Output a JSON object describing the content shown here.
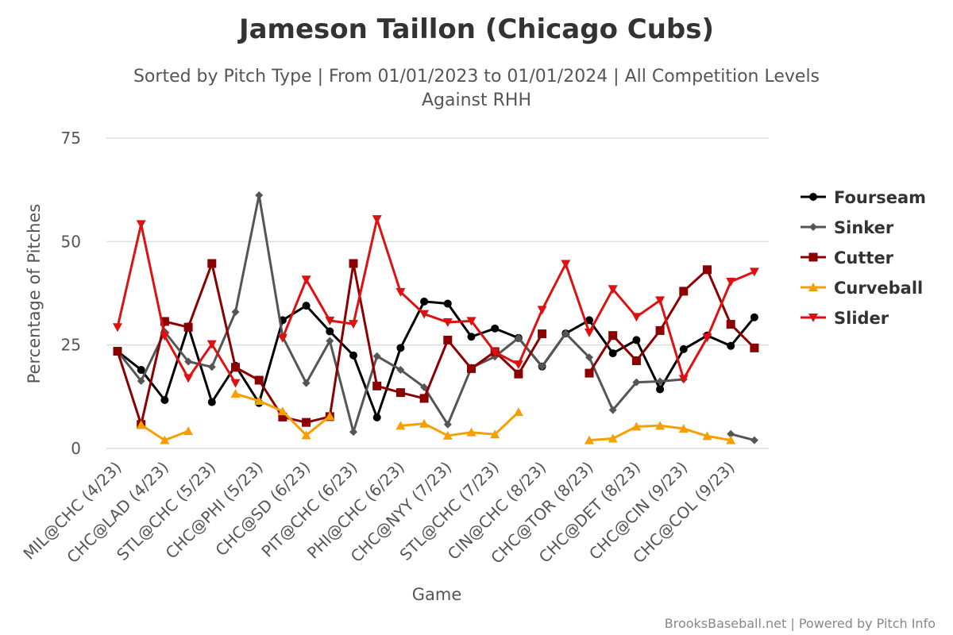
{
  "chart_data": {
    "type": "line",
    "title": "Jameson Taillon (Chicago Cubs)",
    "subtitle": [
      "Sorted by Pitch Type | From 01/01/2023 to 01/01/2024 | All Competition Levels",
      "Against RHH"
    ],
    "xlabel": "Game",
    "ylabel": "Percentage of Pitches",
    "ylim": [
      0,
      75
    ],
    "yticks": [
      "0",
      "25",
      "50",
      "75"
    ],
    "grid": true,
    "legend_position": "right",
    "x_tick_labels": [
      "MIL@CHC (4/23)",
      "CHC@LAD (4/23)",
      "STL@CHC (5/23)",
      "CHC@PHI (5/23)",
      "CHC@SD (6/23)",
      "PIT@CHC (6/23)",
      "PHI@CHC (6/23)",
      "CHC@NYY (7/23)",
      "STL@CHC (7/23)",
      "CIN@CHC (8/23)",
      "CHC@TOR (8/23)",
      "CHC@DET (8/23)",
      "CHC@CIN (9/23)",
      "CHC@COL (9/23)"
    ],
    "num_games": 28,
    "series": [
      {
        "name": "Fourseam",
        "color": "#000000",
        "marker": "circle",
        "values": [
          23.5,
          19,
          11.7,
          29.5,
          11.2,
          20,
          11,
          31,
          34.5,
          28.3,
          22.5,
          7.5,
          24.3,
          35.5,
          35,
          27,
          29,
          26.7,
          19.8,
          27.8,
          31,
          23,
          26.2,
          14.3,
          24,
          27.3,
          24.8,
          31.7
        ]
      },
      {
        "name": "Sinker",
        "color": "#555555",
        "marker": "diamond",
        "values": [
          23.5,
          16.3,
          28.2,
          21,
          19.7,
          33,
          61.2,
          27,
          15.8,
          26,
          4,
          22.3,
          19,
          14.8,
          5.8,
          19.5,
          22.2,
          26.7,
          19.8,
          27.8,
          22,
          9.3,
          16,
          16.2,
          16.7,
          null,
          3.5,
          2
        ]
      },
      {
        "name": "Cutter",
        "color": "#8b0000",
        "marker": "square",
        "values": [
          23.5,
          5.8,
          30.7,
          29.3,
          44.7,
          19.6,
          16.5,
          7.6,
          6.3,
          7.7,
          44.7,
          15.1,
          13.5,
          12.1,
          26.2,
          19.3,
          23.4,
          18,
          27.7,
          null,
          18.2,
          27.3,
          21.2,
          28.5,
          38,
          43.2,
          30,
          24.3
        ]
      },
      {
        "name": "Curveball",
        "color": "#f5a000",
        "marker": "triangle",
        "values": [
          null,
          5.7,
          2,
          4.2,
          null,
          13.2,
          11.5,
          9,
          3.2,
          7.8,
          null,
          null,
          5.5,
          6,
          3.1,
          3.9,
          3.4,
          8.8,
          null,
          null,
          2,
          2.4,
          5.3,
          5.5,
          4.8,
          3,
          2,
          null
        ]
      },
      {
        "name": "Slider",
        "color": "#dd1111",
        "marker": "triangle-down",
        "values": [
          29.3,
          54.2,
          27.2,
          17,
          25.2,
          15.8,
          null,
          26.7,
          40.8,
          30.9,
          30.1,
          55.4,
          37.8,
          32.5,
          30.5,
          30.8,
          23.3,
          20.3,
          33.5,
          44.6,
          28,
          38.5,
          31.8,
          35.8,
          16.8,
          26.8,
          40.3,
          42.7
        ]
      }
    ]
  },
  "credit": "BrooksBaseball.net | Powered by Pitch Info"
}
